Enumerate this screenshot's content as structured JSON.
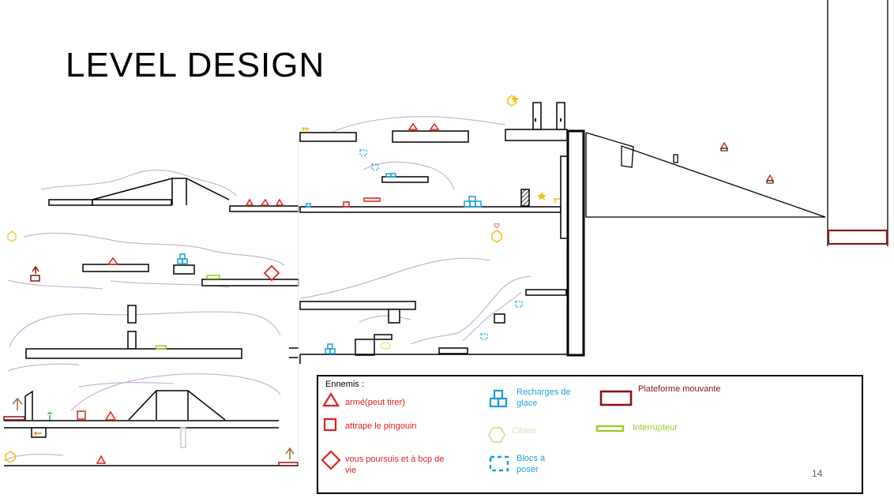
{
  "slide": {
    "title": "LEVEL DESIGN",
    "page_number": "14"
  },
  "legend": {
    "heading": "Ennemis :",
    "items": [
      {
        "label": "armé(peut tirer)",
        "icon": "red-triangle-icon",
        "color": "#e0201e"
      },
      {
        "label": "attrape le pingouin",
        "icon": "red-square-icon",
        "color": "#e0201e"
      },
      {
        "label": "vous poursuis et à bcp de vie",
        "icon": "red-diamond-icon",
        "color": "#e0201e"
      },
      {
        "label": "Recharges de glace",
        "icon": "ice-blocks-icon",
        "color": "#18a1d8"
      },
      {
        "label": "Cibles",
        "icon": "hexagon-target-icon",
        "color": "#e8dcb0"
      },
      {
        "label": "Blocs à poser",
        "icon": "dashed-block-icon",
        "color": "#18a1d8"
      },
      {
        "label": "Plateforme mouvante",
        "icon": "moving-platform-icon",
        "color": "#8b1518"
      },
      {
        "label": "Interrupteur",
        "icon": "switch-icon",
        "color": "#9ccc2a"
      }
    ]
  },
  "colors": {
    "enemy": "#e0201e",
    "ice": "#18a1d8",
    "target": "#e8dcb0",
    "switch": "#9ccc2a",
    "moving": "#8b1518",
    "collectible": "#f2c21a"
  }
}
